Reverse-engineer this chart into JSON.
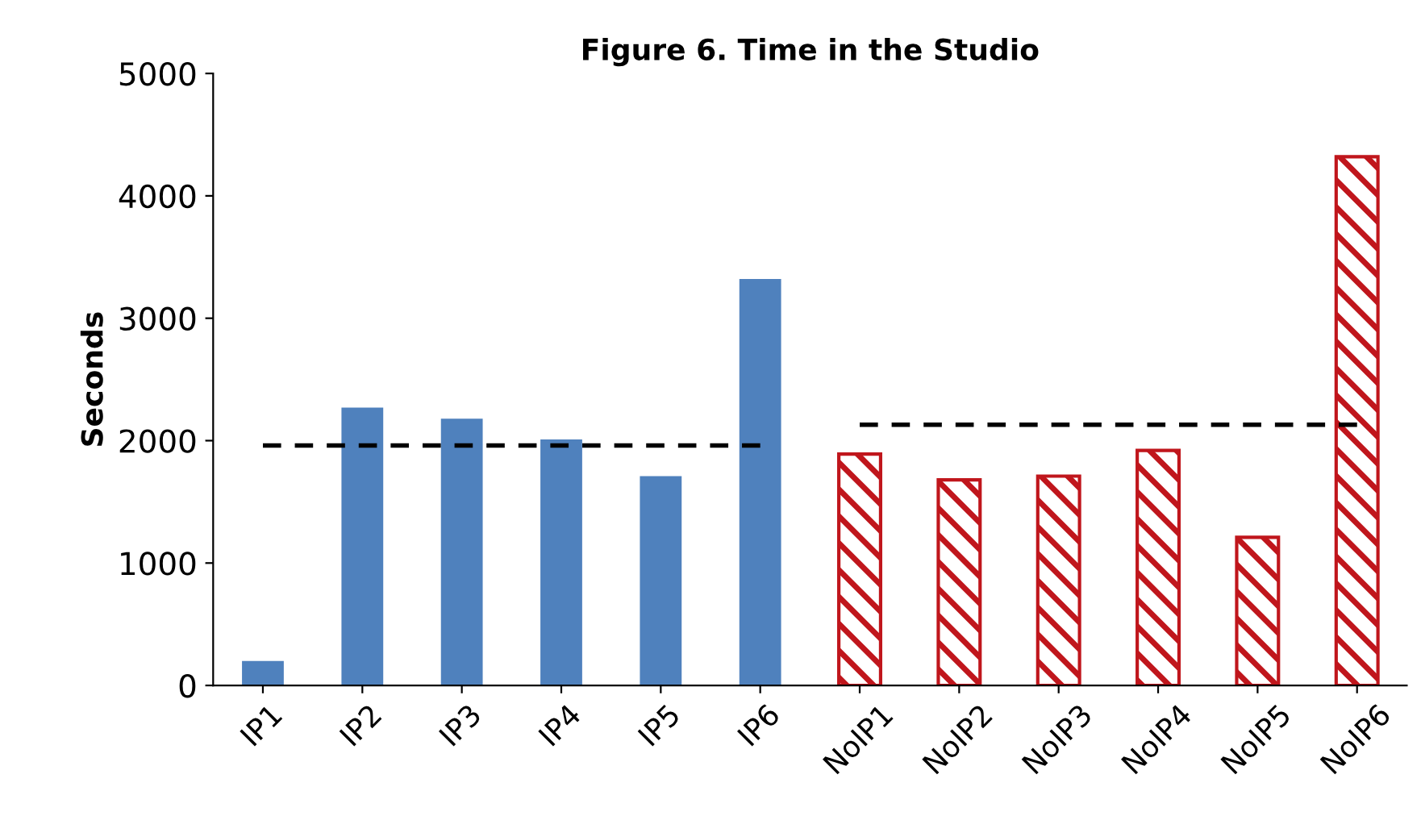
{
  "chart_data": {
    "type": "bar",
    "title": "Figure 6. Time in the Studio",
    "ylabel": "Seconds",
    "categories": [
      "IP1",
      "IP2",
      "IP3",
      "IP4",
      "IP5",
      "IP6",
      "NoIP1",
      "NoIP2",
      "NoIP3",
      "NoIP4",
      "NoIP5",
      "NoIP6"
    ],
    "series": [
      {
        "color": "#4f81bd",
        "values": [
          200,
          2270,
          2180,
          2010,
          1710,
          3320,
          null,
          null,
          null,
          null,
          null,
          null
        ]
      },
      {
        "color": "#c0161c",
        "values": [
          null,
          null,
          null,
          null,
          null,
          null,
          1890,
          1680,
          1710,
          1920,
          1210,
          4320
        ]
      },
      {
        "type": "line",
        "color": "#000000",
        "line_style": "dashed",
        "values": [
          1960,
          1960,
          1960,
          1960,
          1960,
          1960,
          null,
          null,
          null,
          null,
          null,
          null
        ]
      },
      {
        "type": "line",
        "color": "#000000",
        "line_style": "dashed",
        "values": [
          null,
          null,
          null,
          null,
          null,
          null,
          2130,
          2130,
          2130,
          2130,
          2130,
          2130
        ]
      }
    ],
    "ylim": [
      0,
      5000
    ],
    "yticks": [
      0,
      1000,
      2000,
      3000,
      4000,
      5000
    ],
    "grid": false,
    "marker": "none"
  }
}
